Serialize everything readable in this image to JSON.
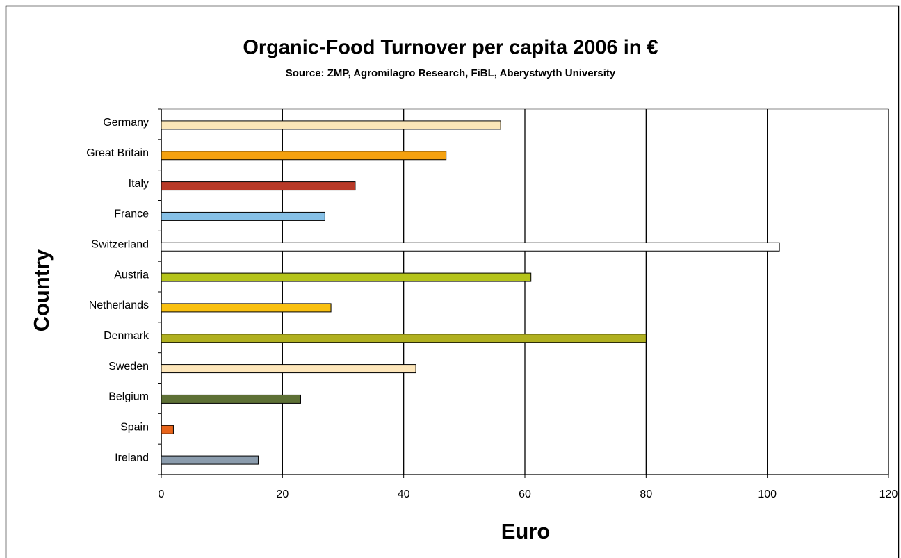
{
  "chart_data": {
    "type": "bar",
    "orientation": "horizontal",
    "title": "Organic-Food Turnover per capita 2006 in €",
    "subtitle": "Source: ZMP, Agromilagro Research, FiBL, Aberystwyth University",
    "x_label": "Euro",
    "y_label": "Country",
    "categories": [
      "Germany",
      "Great Britain",
      "Italy",
      "France",
      "Switzerland",
      "Austria",
      "Netherlands",
      "Denmark",
      "Sweden",
      "Belgium",
      "Spain",
      "Ireland"
    ],
    "values": [
      56,
      47,
      32,
      27,
      102,
      61,
      28,
      80,
      42,
      23,
      2,
      16
    ],
    "colors": [
      "#fbe6b8",
      "#f5a10f",
      "#b83a28",
      "#86c0e6",
      "#ffffff",
      "#b5c41a",
      "#f9c010",
      "#b0b020",
      "#fde6ba",
      "#5d7035",
      "#e8641a",
      "#8b9cad"
    ],
    "xlim": [
      0,
      120
    ],
    "xticks": [
      0,
      20,
      40,
      60,
      80,
      100,
      120
    ],
    "grid": true
  }
}
